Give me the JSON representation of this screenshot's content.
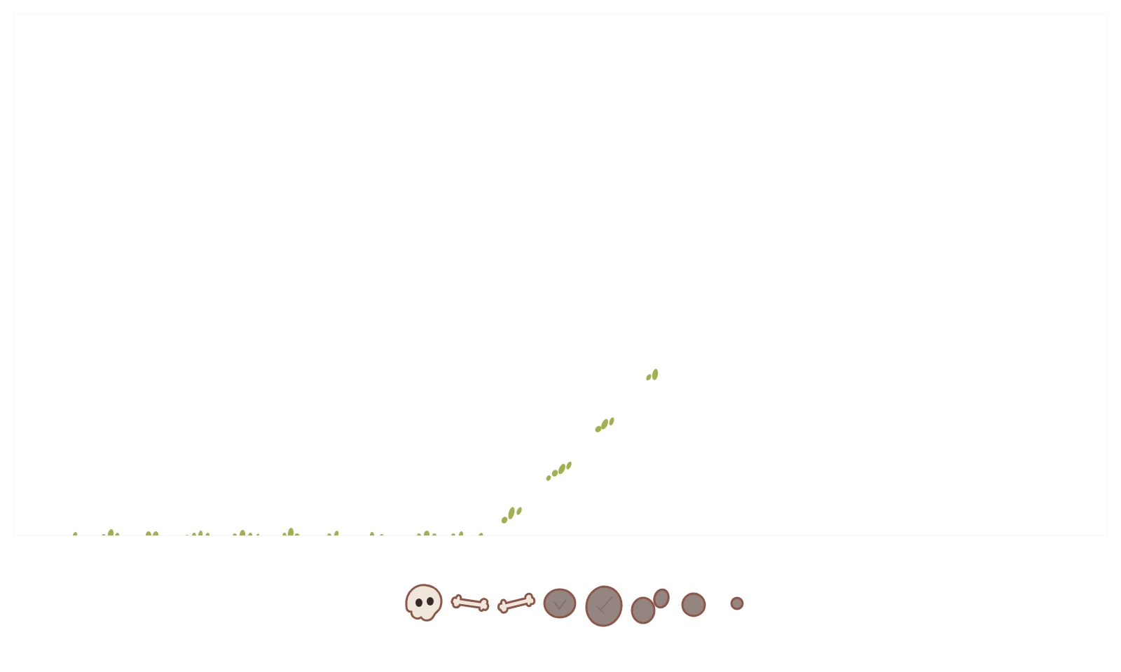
{
  "chart_data": {
    "type": "scatter",
    "x": [
      87,
      138,
      197,
      263,
      330,
      395,
      455,
      518,
      590,
      633,
      666,
      710,
      779,
      842,
      912
    ],
    "values": [
      0,
      0,
      0,
      0,
      0,
      0,
      0,
      0,
      0,
      0,
      0,
      30,
      94,
      161,
      229
    ],
    "xlim": [
      0,
      1560
    ],
    "ylim": [
      0,
      745
    ],
    "color": "#a3b04f",
    "marker": "tuft",
    "grid": false,
    "tick_labels": false
  }
}
